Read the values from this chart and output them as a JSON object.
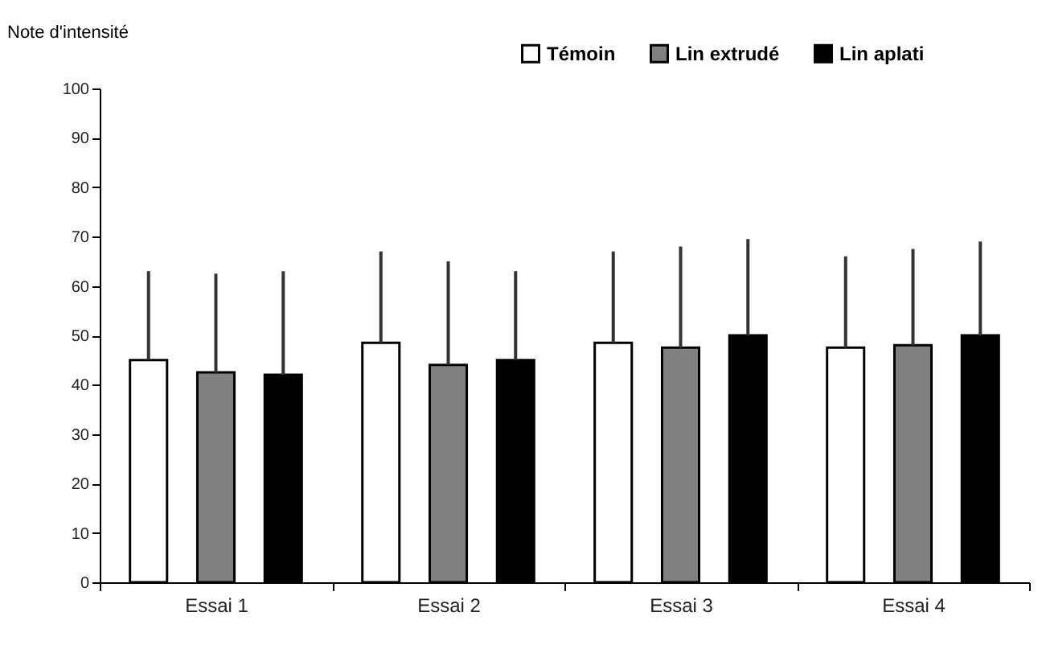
{
  "chart_data": {
    "type": "bar",
    "ylabel": "Note d'intensité",
    "categories": [
      "Essai 1",
      "Essai 2",
      "Essai 3",
      "Essai 4"
    ],
    "series": [
      {
        "name": "Témoin",
        "color": "#ffffff",
        "values": [
          45,
          48.5,
          48.5,
          47.5
        ],
        "errors": [
          [
            45,
            63
          ],
          [
            48.5,
            67
          ],
          [
            48.5,
            67
          ],
          [
            47.5,
            66
          ]
        ]
      },
      {
        "name": "Lin extrudé",
        "color": "#808080",
        "values": [
          42.5,
          44,
          47.5,
          48
        ],
        "errors": [
          [
            42.5,
            62.5
          ],
          [
            44,
            65
          ],
          [
            47.5,
            68
          ],
          [
            48,
            67.5
          ]
        ]
      },
      {
        "name": "Lin aplati",
        "color": "#000000",
        "values": [
          42,
          45,
          50,
          50
        ],
        "errors": [
          [
            42,
            63
          ],
          [
            45,
            63
          ],
          [
            50,
            69.5
          ],
          [
            50,
            69
          ]
        ]
      }
    ],
    "ylim": [
      0,
      100
    ],
    "yticks": [
      0,
      10,
      20,
      30,
      40,
      50,
      60,
      70,
      80,
      90,
      100
    ],
    "grid": false,
    "legend": "top right"
  }
}
